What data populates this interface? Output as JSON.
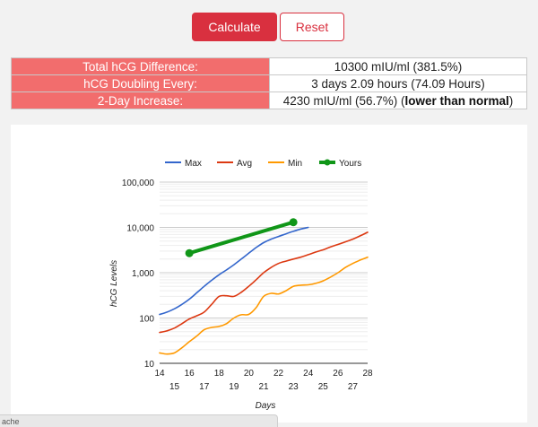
{
  "buttons": {
    "calculate": "Calculate",
    "reset": "Reset"
  },
  "results": {
    "total_label": "Total hCG Difference:",
    "total_value": "10300 mIU/ml (381.5%)",
    "doubling_label": "hCG Doubling Every:",
    "doubling_value": "3 days 2.09 hours (74.09 Hours)",
    "increase_label": "2-Day Increase:",
    "increase_value": "4230 mIU/ml (56.7%) (",
    "increase_note": "lower than normal",
    "increase_close": ")"
  },
  "status": {
    "text": "ache"
  },
  "chart_data": {
    "type": "line",
    "xlabel": "Days",
    "ylabel": "hCG Levels",
    "y_scale": "log",
    "ylim": [
      10,
      100000
    ],
    "xlim": [
      14,
      28
    ],
    "x_ticks": [
      14,
      15,
      16,
      17,
      18,
      19,
      20,
      21,
      22,
      23,
      24,
      25,
      26,
      27,
      28
    ],
    "y_ticks": [
      10,
      100,
      1000,
      10000,
      100000
    ],
    "y_tick_labels": [
      "10",
      "100",
      "1,000",
      "10,000",
      "100,000"
    ],
    "grid": true,
    "legend": "top",
    "series": [
      {
        "name": "Max",
        "color": "#3366cc",
        "width": 1.6,
        "markers": false,
        "x": [
          14,
          14.5,
          15,
          15.5,
          16,
          16.5,
          17,
          17.5,
          18,
          18.5,
          19,
          19.5,
          20,
          20.5,
          21,
          21.5,
          22,
          22.5,
          23,
          23.5,
          24
        ],
        "y": [
          120,
          135,
          160,
          200,
          260,
          360,
          500,
          680,
          900,
          1150,
          1500,
          2000,
          2700,
          3600,
          4600,
          5500,
          6300,
          7200,
          8200,
          9200,
          10000
        ]
      },
      {
        "name": "Avg",
        "color": "#dc3912",
        "width": 1.6,
        "markers": false,
        "x": [
          14,
          14.5,
          15,
          15.5,
          16,
          16.5,
          17,
          17.5,
          18,
          18.5,
          19,
          19.5,
          20,
          20.5,
          21,
          21.5,
          22,
          22.5,
          23,
          23.5,
          24,
          24.5,
          25,
          25.5,
          26,
          26.5,
          27,
          27.5,
          28
        ],
        "y": [
          48,
          52,
          60,
          75,
          95,
          112,
          135,
          200,
          300,
          310,
          300,
          370,
          500,
          700,
          1000,
          1300,
          1600,
          1800,
          2000,
          2200,
          2500,
          2850,
          3200,
          3700,
          4200,
          4800,
          5500,
          6500,
          7800
        ]
      },
      {
        "name": "Min",
        "color": "#ff9900",
        "width": 1.6,
        "markers": false,
        "x": [
          14,
          14.5,
          15,
          15.5,
          16,
          16.5,
          17,
          17.5,
          18,
          18.5,
          19,
          19.5,
          20,
          20.5,
          21,
          21.5,
          22,
          22.5,
          23,
          23.5,
          24,
          24.5,
          25,
          25.5,
          26,
          26.5,
          27,
          27.5,
          28
        ],
        "y": [
          17,
          16,
          17,
          22,
          30,
          40,
          55,
          62,
          65,
          75,
          100,
          118,
          120,
          170,
          300,
          350,
          340,
          400,
          500,
          530,
          540,
          580,
          660,
          800,
          1000,
          1300,
          1600,
          1900,
          2200
        ]
      },
      {
        "name": "Yours",
        "color": "#109618",
        "width": 4,
        "markers": true,
        "x": [
          16,
          23
        ],
        "y": [
          2700,
          13000
        ]
      }
    ]
  }
}
